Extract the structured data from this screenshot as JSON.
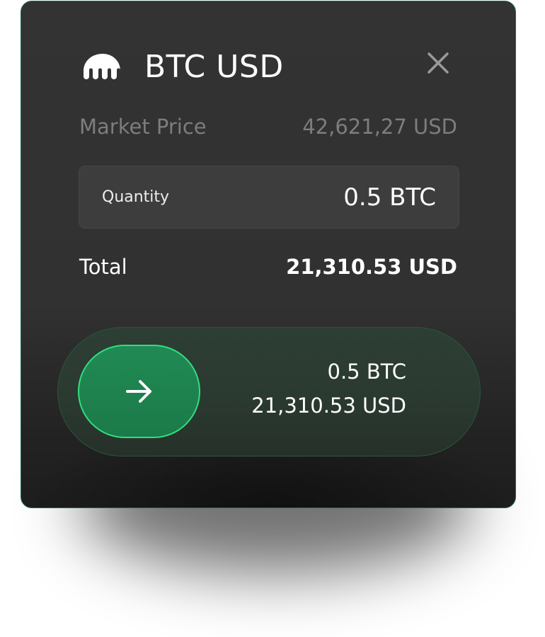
{
  "header": {
    "logo_icon": "kraken-logo-icon",
    "pair": "BTC USD",
    "close_icon": "close-icon"
  },
  "market": {
    "label": "Market Price",
    "value": "42,621,27 USD"
  },
  "quantity": {
    "label": "Quantity",
    "value": "0.5 BTC"
  },
  "total": {
    "label": "Total",
    "value": "21,310.53 USD"
  },
  "slider": {
    "icon": "arrow-right-icon",
    "amount": "0.5 BTC",
    "total": "21,310.53 USD"
  },
  "colors": {
    "accent": "#2ee07e",
    "button": "#1b7a49",
    "card": "#333333"
  }
}
